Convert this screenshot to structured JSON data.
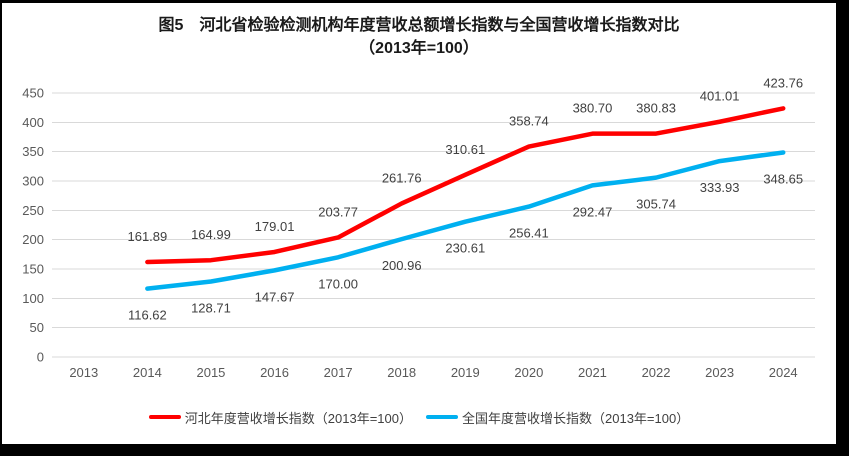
{
  "chart_data": {
    "type": "line",
    "title": "图5　河北省检验检测机构年度营收总额增长指数与全国营收增长指数对比",
    "subtitle": "（2013年=100）",
    "categories": [
      "2013",
      "2014",
      "2015",
      "2016",
      "2017",
      "2018",
      "2019",
      "2020",
      "2021",
      "2022",
      "2023",
      "2024"
    ],
    "series": [
      {
        "name": "河北年度营收增长指数（2013年=100）",
        "color": "#FF0000",
        "start_index": 1,
        "label_position": "above",
        "values": [
          161.89,
          164.99,
          179.01,
          203.77,
          261.76,
          310.61,
          358.74,
          380.7,
          380.83,
          401.01,
          423.76
        ]
      },
      {
        "name": "全国年度营收增长指数（2013年=100）",
        "color": "#00B0F0",
        "start_index": 1,
        "label_position": "below",
        "values": [
          116.62,
          128.71,
          147.67,
          170.0,
          200.96,
          230.61,
          256.41,
          292.47,
          305.74,
          333.93,
          348.65
        ]
      }
    ],
    "ylim": [
      0,
      450
    ],
    "yticks": [
      0,
      50,
      100,
      150,
      200,
      250,
      300,
      350,
      400,
      450
    ],
    "grid": true,
    "data_labels": true,
    "legend_position": "bottom",
    "colors": {
      "gridline": "#D9D9D9",
      "tick_label": "#595959",
      "data_label": "#404040",
      "title": "#1A1A1A",
      "frame_border": "#000000",
      "background": "#FFFFFF"
    }
  }
}
